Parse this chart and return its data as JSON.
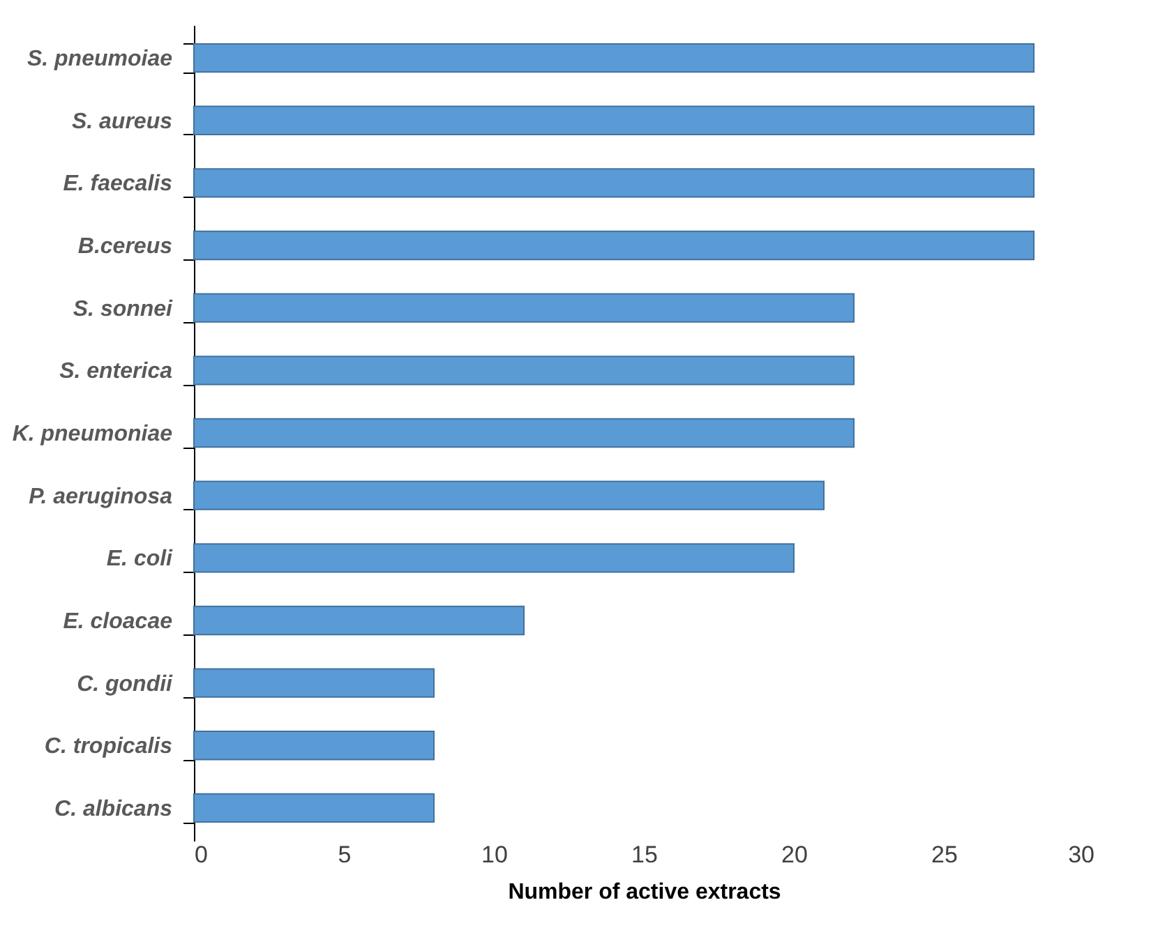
{
  "chart_data": {
    "type": "bar",
    "orientation": "horizontal",
    "xlabel": "Number of active extracts",
    "categories": [
      "S. pneumoiae",
      "S. aureus",
      "E. faecalis",
      "B.cereus",
      "S. sonnei",
      "S. enterica",
      "K. pneumoniae",
      "P. aeruginosa",
      "E. coli",
      "E. cloacae",
      "C. gondii",
      "C. tropicalis",
      "C. albicans"
    ],
    "values": [
      28,
      28,
      28,
      28,
      22,
      22,
      22,
      21,
      20,
      11,
      8,
      8,
      8
    ],
    "color": "#5b9bd5",
    "xlim": [
      0,
      30
    ],
    "xticks": [
      0,
      5,
      10,
      15,
      20,
      25,
      30
    ]
  }
}
